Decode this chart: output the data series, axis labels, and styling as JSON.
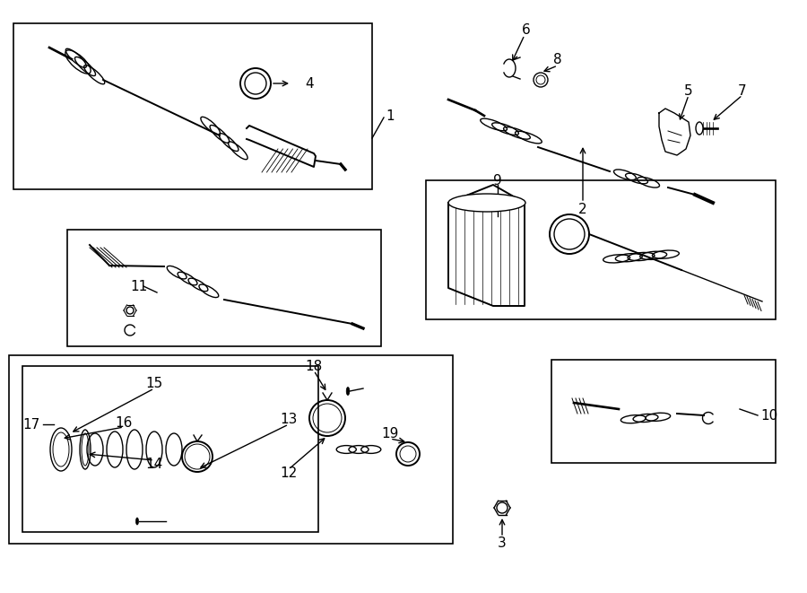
{
  "bg_color": "#ffffff",
  "line_color": "#000000",
  "fig_width": 9.0,
  "fig_height": 6.61
}
